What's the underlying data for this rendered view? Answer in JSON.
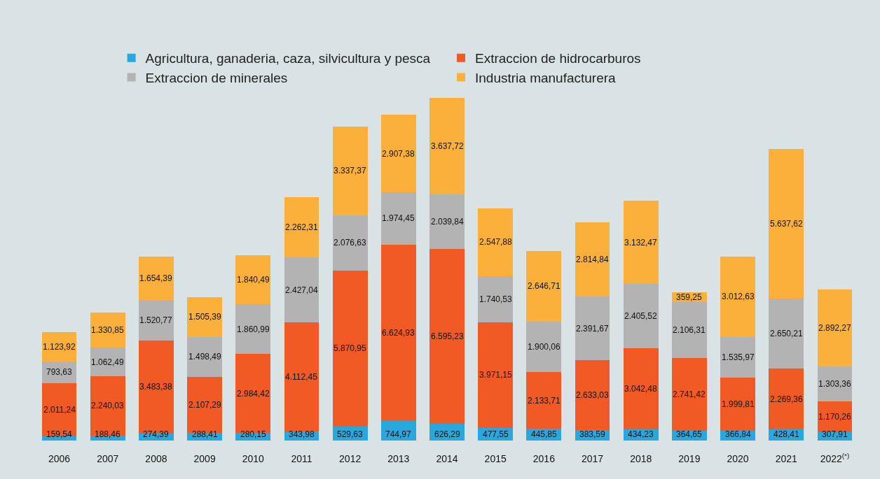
{
  "chart_data": {
    "type": "bar",
    "stacked": true,
    "legend": "top",
    "grid": false,
    "categories": [
      "2006",
      "2007",
      "2008",
      "2009",
      "2010",
      "2011",
      "2012",
      "2013",
      "2014",
      "2015",
      "2016",
      "2017",
      "2018",
      "2019",
      "2020",
      "2021",
      "2022$^{(*)}$"
    ],
    "series": [
      {
        "name": "Agricultura, ganaderia, caza, silvicultura y pesca",
        "color": "#29a8e0",
        "values": [
          159.54,
          188.46,
          274.39,
          288.41,
          280.15,
          343.98,
          529.63,
          744.97,
          626.29,
          477.55,
          445.85,
          383.59,
          434.23,
          364.65,
          366.84,
          428.41,
          307.91
        ],
        "value_labels": [
          "159,54",
          "188,46",
          "274,39",
          "288,41",
          "280,15",
          "343,98",
          "529,63",
          "744,97",
          "626,29",
          "477,55",
          "445,85",
          "383,59",
          "434,23",
          "364,65",
          "366,84",
          "428,41",
          "307,91"
        ]
      },
      {
        "name": "Extraccion de hidrocarburos",
        "color": "#f15a24",
        "values": [
          2011.24,
          2240.03,
          3483.38,
          2107.29,
          2984.42,
          4112.45,
          5870.95,
          6624.93,
          6595.23,
          3971.15,
          2133.71,
          2633.03,
          3042.48,
          2741.42,
          1999.81,
          2269.36,
          1170.26
        ],
        "value_labels": [
          "2.011,24",
          "2.240,03",
          "3.483,38",
          "2.107,29",
          "2.984,42",
          "4.112,45",
          "5.870,95",
          "6.624,93",
          "6.595,23",
          "3.971,15",
          "2.133,71",
          "2.633,03",
          "3.042,48",
          "2.741,42",
          "1.999,81",
          "2.269,36",
          "1.170,26"
        ]
      },
      {
        "name": "Extraccion de minerales",
        "color": "#b3b3b3",
        "values": [
          793.63,
          1062.49,
          1520.77,
          1498.49,
          1860.99,
          2427.04,
          2076.63,
          1974.45,
          2039.84,
          1740.53,
          1900.06,
          2391.67,
          2405.52,
          2106.31,
          1535.97,
          2650.21,
          1303.36
        ],
        "value_labels": [
          "793,63",
          "1.062,49",
          "1.520,77",
          "1.498,49",
          "1.860,99",
          "2.427,04",
          "2.076,63",
          "1.974,45",
          "2.039,84",
          "1.740,53",
          "1.900,06",
          "2.391,67",
          "2.405,52",
          "2.106,31",
          "1.535,97",
          "2.650,21",
          "1.303,36"
        ]
      },
      {
        "name": "Industria manufacturera",
        "color": "#fbb03b",
        "values": [
          1123.92,
          1330.85,
          1654.39,
          1505.39,
          1840.49,
          2262.31,
          3337.37,
          2907.38,
          3637.72,
          2547.88,
          2646.71,
          2814.84,
          3132.47,
          359.25,
          3012.63,
          5637.62,
          2892.27
        ],
        "value_labels": [
          "1.123,92",
          "1.330,85",
          "1.654,39",
          "1.505,39",
          "1.840,49",
          "2.262,31",
          "3.337,37",
          "2.907,38",
          "3.637,72",
          "2.547,88",
          "2.646,71",
          "2.814,84",
          "3.132,47",
          "359,25",
          "3.012,63",
          "5.637,62",
          "2.892,27"
        ]
      }
    ]
  }
}
